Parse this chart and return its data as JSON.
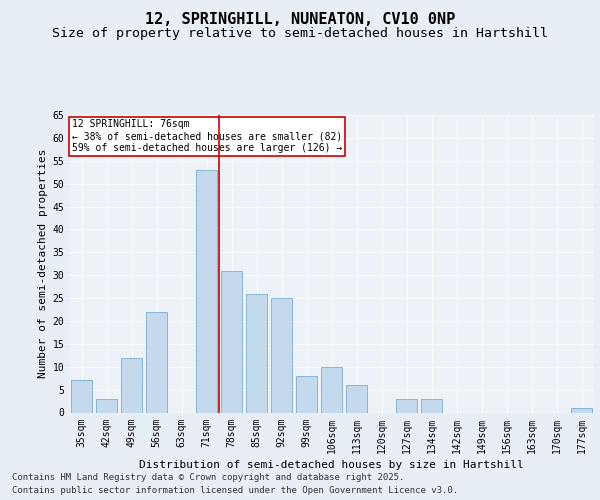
{
  "title_line1": "12, SPRINGHILL, NUNEATON, CV10 0NP",
  "title_line2": "Size of property relative to semi-detached houses in Hartshill",
  "xlabel": "Distribution of semi-detached houses by size in Hartshill",
  "ylabel": "Number of semi-detached properties",
  "categories": [
    "35sqm",
    "42sqm",
    "49sqm",
    "56sqm",
    "63sqm",
    "71sqm",
    "78sqm",
    "85sqm",
    "92sqm",
    "99sqm",
    "106sqm",
    "113sqm",
    "120sqm",
    "127sqm",
    "134sqm",
    "142sqm",
    "149sqm",
    "156sqm",
    "163sqm",
    "170sqm",
    "177sqm"
  ],
  "values": [
    7,
    3,
    12,
    22,
    0,
    53,
    31,
    26,
    25,
    8,
    10,
    6,
    0,
    3,
    3,
    0,
    0,
    0,
    0,
    0,
    1
  ],
  "bar_color": "#c5d9ed",
  "bar_edge_color": "#7aafd4",
  "vline_x": 5,
  "vline_color": "#cc0000",
  "annotation_title": "12 SPRINGHILL: 76sqm",
  "annotation_line2": "← 38% of semi-detached houses are smaller (82)",
  "annotation_line3": "59% of semi-detached houses are larger (126) →",
  "annotation_box_color": "#cc0000",
  "ylim": [
    0,
    65
  ],
  "yticks": [
    0,
    5,
    10,
    15,
    20,
    25,
    30,
    35,
    40,
    45,
    50,
    55,
    60,
    65
  ],
  "footnote_line1": "Contains HM Land Registry data © Crown copyright and database right 2025.",
  "footnote_line2": "Contains public sector information licensed under the Open Government Licence v3.0.",
  "bg_color": "#e8eef5",
  "plot_bg_color": "#edf2f8",
  "grid_color": "#ffffff",
  "title_fontsize": 11,
  "subtitle_fontsize": 9.5,
  "axis_label_fontsize": 8,
  "tick_fontsize": 7,
  "annotation_fontsize": 7,
  "footnote_fontsize": 6.5
}
